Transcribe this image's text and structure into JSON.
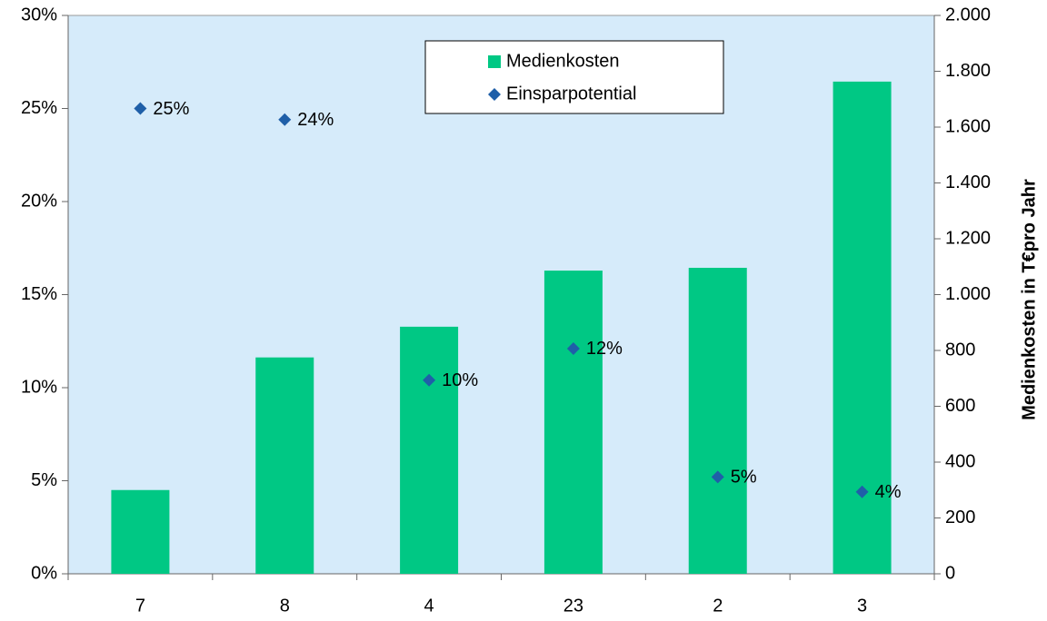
{
  "chart_data": {
    "type": "bar",
    "y2label": "Medienkosten in T€pro Jahr",
    "categories": [
      "7",
      "8",
      "4",
      "23",
      "2",
      "3"
    ],
    "series": [
      {
        "name": "Medienkosten",
        "type": "bar",
        "axis": "y2",
        "color": "#00c884",
        "values": [
          300,
          775,
          885,
          1086,
          1096,
          1763
        ]
      },
      {
        "name": "Einsparpotential",
        "type": "scatter",
        "axis": "y",
        "color": "#1f5fa8",
        "values": [
          25,
          24.4,
          10.4,
          12.1,
          5.2,
          4.4
        ],
        "value_labels": [
          "25%",
          "24%",
          "10%",
          "12%",
          "5%",
          "4%"
        ]
      }
    ],
    "ylim": [
      0,
      30
    ],
    "yticks": [
      {
        "value": 0,
        "label": "0%"
      },
      {
        "value": 5,
        "label": "5%"
      },
      {
        "value": 10,
        "label": "10%"
      },
      {
        "value": 15,
        "label": "15%"
      },
      {
        "value": 20,
        "label": "20%"
      },
      {
        "value": 25,
        "label": "25%"
      },
      {
        "value": 30,
        "label": "30%"
      }
    ],
    "y2lim": [
      0,
      2000
    ],
    "y2ticks": [
      0,
      200,
      400,
      600,
      800,
      {
        "value": 1000,
        "label": "1.000"
      },
      {
        "value": 1200,
        "label": "1.200"
      },
      {
        "value": 1400,
        "label": "1.400"
      },
      {
        "value": 1600,
        "label": "1.600"
      },
      {
        "value": 1800,
        "label": "1.800"
      },
      {
        "value": 2000,
        "label": "2.000"
      }
    ],
    "legend": "top-center"
  }
}
